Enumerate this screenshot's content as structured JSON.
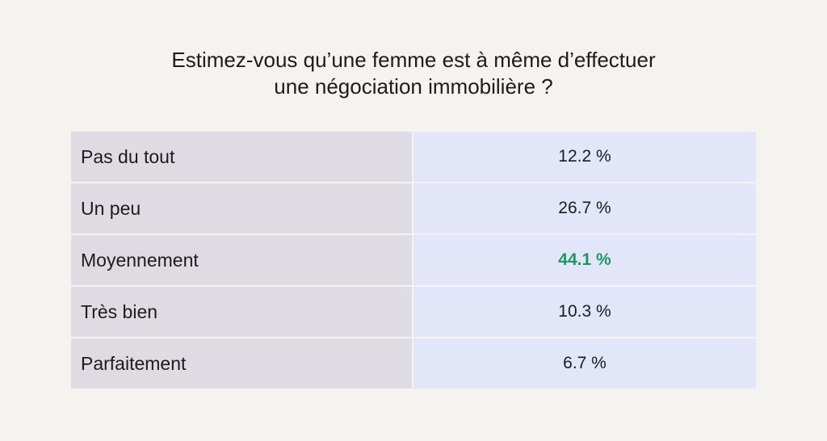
{
  "chart_data": {
    "type": "table",
    "title": "Estimez-vous qu’une femme est à même d’effectuer une négociation immobilière ?",
    "title_lines": [
      "Estimez-vous qu’une femme est à même d’effectuer",
      "une négociation immobilière ?"
    ],
    "categories": [
      "Pas du tout",
      "Un peu",
      "Moyennement",
      "Très bien",
      "Parfaitement"
    ],
    "values": [
      12.2,
      26.7,
      44.1,
      10.3,
      6.7
    ],
    "value_labels": [
      "12.2 %",
      "26.7 %",
      "44.1 %",
      "10.3 %",
      "6.7 %"
    ],
    "highlight_index": 2,
    "highlight_color": "#1a9a5c"
  },
  "colors": {
    "background": "#f5f3ef",
    "label_cell": "#dedce2",
    "value_cell": "#e2e6f8",
    "text": "#1c1c1c"
  }
}
